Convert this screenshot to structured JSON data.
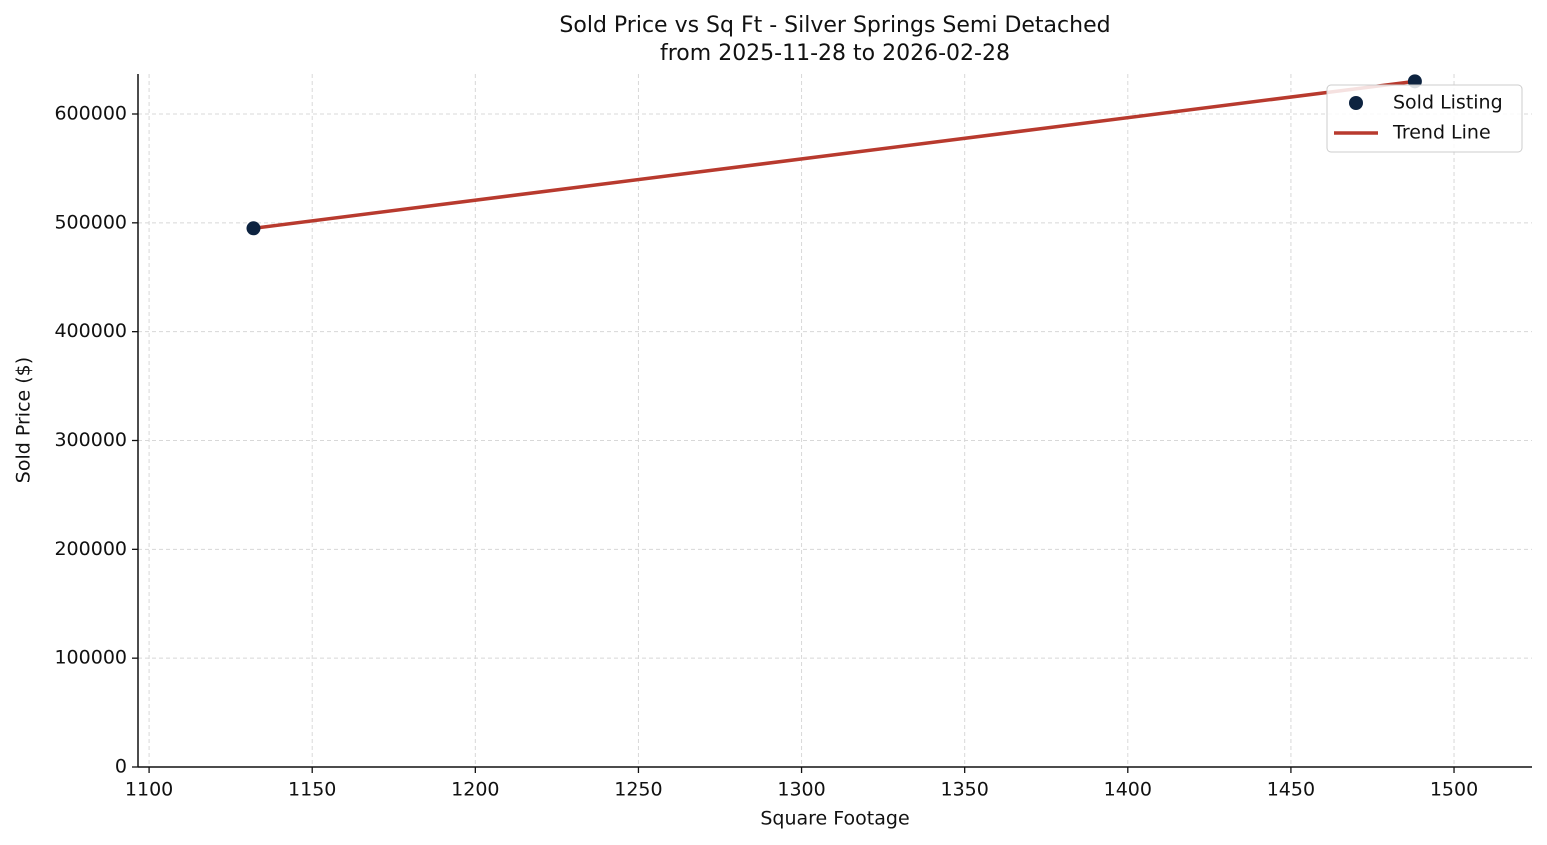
{
  "chart_data": {
    "type": "scatter",
    "title": "Sold Price vs Sq Ft - Silver Springs Semi Detached",
    "subtitle": "from 2025-11-28 to 2026-02-28",
    "xlabel": "Square Footage",
    "ylabel": "Sold Price ($)",
    "xlim": [
      1096.6,
      1523.9
    ],
    "ylim": [
      0,
      636750
    ],
    "xticks": [
      1100,
      1150,
      1200,
      1250,
      1300,
      1350,
      1400,
      1450,
      1500
    ],
    "yticks": [
      0,
      100000,
      200000,
      300000,
      400000,
      500000,
      600000
    ],
    "grid": true,
    "legend": "upper-right",
    "series": [
      {
        "name": "Sold Listing",
        "type": "scatter",
        "color": "#0d2340",
        "x": [
          1132,
          1488
        ],
        "values": [
          495000,
          630000
        ]
      },
      {
        "name": "Trend Line",
        "type": "line",
        "color": "#b83a2e",
        "x": [
          1132,
          1488
        ],
        "values": [
          495000,
          630000
        ]
      }
    ]
  }
}
